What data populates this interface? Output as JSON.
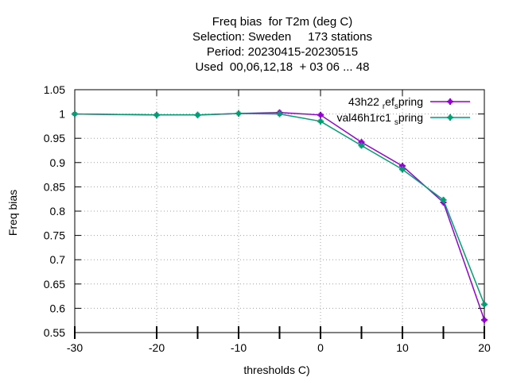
{
  "title_lines": [
    "Freq bias  for T2m (deg C)",
    "Selection: Sweden     173 stations",
    "Period: 20230415-20230515",
    "Used  00,06,12,18  + 03 06 ... 48"
  ],
  "chart_data": {
    "type": "line",
    "xlabel": "thresholds C)",
    "ylabel": "Freq bias",
    "xlim": [
      -30,
      20
    ],
    "ylim": [
      0.55,
      1.05
    ],
    "xticks": [
      -30,
      -20,
      -10,
      0,
      10,
      20
    ],
    "xtick_labels": [
      "-30",
      "-20",
      "-10",
      "0",
      "10",
      "20"
    ],
    "yticks": [
      0.55,
      0.6,
      0.65,
      0.7,
      0.75,
      0.8,
      0.85,
      0.9,
      0.95,
      1,
      1.05
    ],
    "ytick_labels": [
      "0.55",
      "0.6",
      "0.65",
      "0.7",
      "0.75",
      "0.8",
      "0.85",
      "0.9",
      "0.95",
      "1",
      "1.05"
    ],
    "grid": true,
    "legend_position": "top-right",
    "series": [
      {
        "name": "43h22 ref spring",
        "legend_parts": [
          "43h22 ",
          "r",
          "ef",
          "s",
          "pring"
        ],
        "color": "#9400d3",
        "x": [
          -30,
          -20,
          -15,
          -10,
          -5,
          0,
          5,
          10,
          15,
          20
        ],
        "y": [
          1.0,
          0.998,
          0.998,
          1.001,
          1.003,
          0.998,
          0.942,
          0.893,
          0.818,
          0.576
        ]
      },
      {
        "name": "val46h1rc1 spring",
        "legend_parts": [
          "val46h1rc1 ",
          "s",
          "pring"
        ],
        "color": "#009e73",
        "x": [
          -30,
          -20,
          -15,
          -10,
          -5,
          0,
          5,
          10,
          15,
          20
        ],
        "y": [
          1.0,
          0.998,
          0.998,
          1.001,
          1.0,
          0.985,
          0.935,
          0.886,
          0.823,
          0.608
        ]
      }
    ]
  }
}
